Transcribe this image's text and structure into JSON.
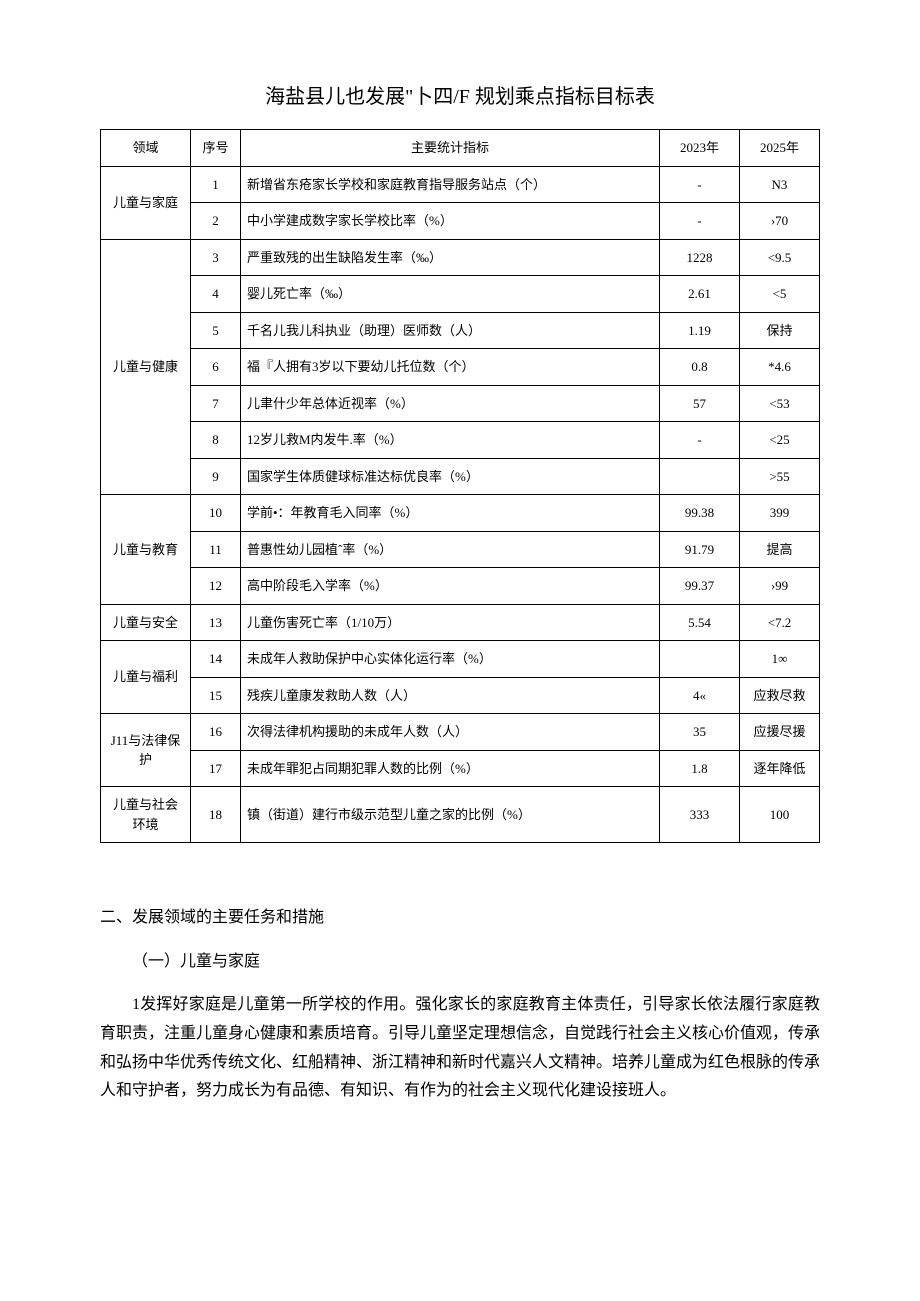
{
  "title": "海盐县儿也发展\"卜四/F 规划乘点指标目标表",
  "table": {
    "headers": {
      "domain": "领域",
      "seq": "序号",
      "indicator": "主要统计指标",
      "year2023": "2023年",
      "year2025": "2025年"
    },
    "groups": [
      {
        "domain": "儿童与家庭",
        "rows": [
          {
            "seq": "1",
            "indicator": "新增省东疮家长学校和家庭教育指导服务站点（个）",
            "y2023": "-",
            "y2025": "N3"
          },
          {
            "seq": "2",
            "indicator": "中小学建成数字家长学校比率（%）",
            "y2023": "-",
            "y2025": "›70"
          }
        ]
      },
      {
        "domain": "儿童与健康",
        "rows": [
          {
            "seq": "3",
            "indicator": "严重致残的出生缺陷发生率（‰）",
            "y2023": "1228",
            "y2025": "<9.5"
          },
          {
            "seq": "4",
            "indicator": "婴儿死亡率（‰）",
            "y2023": "2.61",
            "y2025": "<5"
          },
          {
            "seq": "5",
            "indicator": "千名儿我儿科执业（助理）医师数（人）",
            "y2023": "1.19",
            "y2025": "保持"
          },
          {
            "seq": "6",
            "indicator": "福『人拥有3岁以下要幼儿托位数（个）",
            "y2023": "0.8",
            "y2025": "*4.6"
          },
          {
            "seq": "7",
            "indicator": "儿聿什少年总体近视率（%）",
            "y2023": "57",
            "y2025": "<53"
          },
          {
            "seq": "8",
            "indicator": "12岁儿救M内发牛.率（%）",
            "y2023": "-",
            "y2025": "<25"
          },
          {
            "seq": "9",
            "indicator": "国家学生体质健球标准达标优良率（%）",
            "y2023": "",
            "y2025": ">55"
          }
        ]
      },
      {
        "domain": "儿童与教育",
        "rows": [
          {
            "seq": "10",
            "indicator": "学前•：年教育毛入同率（%）",
            "y2023": "99.38",
            "y2025": "399"
          },
          {
            "seq": "11",
            "indicator": "普惠性幼儿园植ˆ率（%）",
            "y2023": "91.79",
            "y2025": "提高"
          },
          {
            "seq": "12",
            "indicator": "高中阶段毛入学率（%）",
            "y2023": "99.37",
            "y2025": "›99"
          }
        ]
      },
      {
        "domain": "儿童与安全",
        "rows": [
          {
            "seq": "13",
            "indicator": "儿童伤害死亡率（1/10万）",
            "y2023": "5.54",
            "y2025": "<7.2"
          }
        ]
      },
      {
        "domain": "儿童与福利",
        "rows": [
          {
            "seq": "14",
            "indicator": "未成年人救助保护中心实体化运行率（%）",
            "y2023": "",
            "y2025": "1∞"
          },
          {
            "seq": "15",
            "indicator": "残疾儿童康发救助人数（人）",
            "y2023": "4«",
            "y2025": "应救尽救"
          }
        ]
      },
      {
        "domain": "J11与法律保护",
        "rows": [
          {
            "seq": "16",
            "indicator": "次得法律机构援助的未成年人数（人）",
            "y2023": "35",
            "y2025": "应援尽援"
          },
          {
            "seq": "17",
            "indicator": "未成年罪犯占同期犯罪人数的比例（%）",
            "y2023": "1.8",
            "y2025": "逐年降低"
          }
        ]
      },
      {
        "domain": "儿童与社会环境",
        "rows": [
          {
            "seq": "18",
            "indicator": "镇（街道）建行市级示范型儿童之家的比例（%）",
            "y2023": "333",
            "y2025": "100"
          }
        ]
      }
    ]
  },
  "section_heading": "二、发展领域的主要任务和措施",
  "subsection_heading": "（一）儿童与家庭",
  "body_paragraph": "1发挥好家庭是儿童第一所学校的作用。强化家长的家庭教育主体责任，引导家长依法履行家庭教育职责，注重儿童身心健康和素质培育。引导儿童坚定理想信念，自觉践行社会主义核心价值观，传承和弘扬中华优秀传统文化、红船精神、浙江精神和新时代嘉兴人文精神。培养儿童成为红色根脉的传承人和守护者，努力成长为有品德、有知识、有作为的社会主义现代化建设接班人。"
}
